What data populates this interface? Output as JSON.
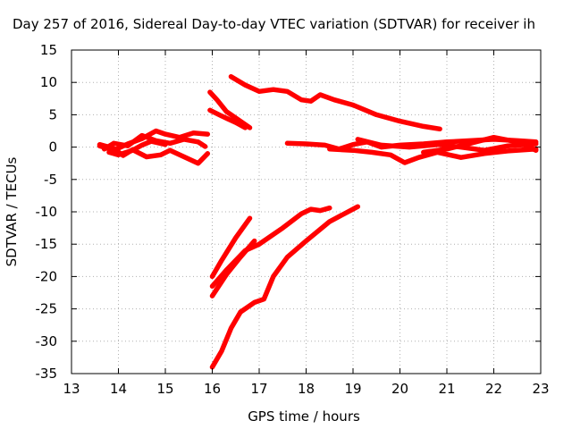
{
  "chart_data": {
    "type": "scatter",
    "title": "Day 257 of 2016, Sidereal Day-to-day VTEC variation (SDTVAR) for receiver ih",
    "xlabel": "GPS time / hours",
    "ylabel": "SDTVAR / TECUs",
    "xlim": [
      13,
      23
    ],
    "ylim": [
      -35,
      15
    ],
    "xticks": [
      13,
      14,
      15,
      16,
      17,
      18,
      19,
      20,
      21,
      22,
      23
    ],
    "yticks": [
      15,
      10,
      5,
      0,
      -5,
      -10,
      -15,
      -20,
      -25,
      -30,
      -35
    ],
    "grid": true,
    "legend": "none",
    "marker_color": "#ff0000",
    "series": [
      {
        "x": [
          13.6,
          13.9,
          14.2,
          14.5,
          14.8,
          15.0,
          15.3,
          15.6,
          15.9
        ],
        "y": [
          0.2,
          -0.5,
          0.5,
          1.3,
          2.5,
          2.0,
          1.5,
          2.2,
          2.0
        ]
      },
      {
        "x": [
          13.6,
          13.9,
          14.1,
          14.3,
          14.6,
          14.9,
          15.1,
          15.4,
          15.7,
          15.9
        ],
        "y": [
          0.4,
          -0.2,
          -1.3,
          -0.4,
          -1.5,
          -1.2,
          -0.5,
          -1.5,
          -2.5,
          -1.0
        ]
      },
      {
        "x": [
          13.7,
          13.9,
          14.2,
          14.5,
          14.8,
          15.1,
          15.4,
          15.7,
          15.85
        ],
        "y": [
          -0.3,
          0.6,
          0.2,
          1.8,
          1.0,
          0.6,
          1.2,
          0.8,
          0.1
        ]
      },
      {
        "x": [
          13.8,
          14.0,
          14.3,
          14.5,
          14.7,
          15.0
        ],
        "y": [
          -0.8,
          -1.2,
          -0.5,
          0.3,
          0.9,
          0.4
        ]
      },
      {
        "x": [
          15.95,
          16.1,
          16.3,
          16.5,
          16.8
        ],
        "y": [
          8.5,
          7.3,
          5.5,
          4.5,
          3.0
        ]
      },
      {
        "x": [
          15.95,
          16.2,
          16.5,
          16.7
        ],
        "y": [
          5.7,
          4.8,
          3.8,
          3.0
        ]
      },
      {
        "x": [
          16.4,
          16.7,
          17.0,
          17.3,
          17.6,
          17.9,
          18.1,
          18.3,
          18.6,
          19.0,
          19.5,
          20.0,
          20.5,
          20.85
        ],
        "y": [
          10.9,
          9.6,
          8.6,
          8.9,
          8.6,
          7.3,
          7.1,
          8.1,
          7.3,
          6.5,
          5.0,
          4.0,
          3.2,
          2.8
        ]
      },
      {
        "x": [
          17.6,
          18.0,
          18.4,
          18.7,
          19.0,
          19.3,
          19.6,
          20.0,
          20.5,
          21.0,
          21.5,
          22.0,
          22.5,
          22.9
        ],
        "y": [
          0.6,
          0.5,
          0.3,
          -0.3,
          0.4,
          0.8,
          0.0,
          0.3,
          0.5,
          0.8,
          1.0,
          1.2,
          1.0,
          0.8
        ]
      },
      {
        "x": [
          18.5,
          19.0,
          19.4,
          19.8,
          20.1,
          20.4,
          20.8,
          21.3,
          21.8,
          22.3,
          22.9
        ],
        "y": [
          -0.3,
          -0.5,
          -0.8,
          -1.2,
          -2.4,
          -1.6,
          -0.8,
          -1.6,
          -1.0,
          -0.6,
          -0.3
        ]
      },
      {
        "x": [
          19.1,
          19.6,
          20.2,
          20.8,
          21.3,
          21.8,
          22.3,
          22.9
        ],
        "y": [
          1.2,
          0.3,
          0.0,
          0.4,
          0.0,
          -0.5,
          0.2,
          0.5
        ]
      },
      {
        "x": [
          20.5,
          21.0,
          21.5,
          22.0,
          22.5,
          22.9
        ],
        "y": [
          -0.8,
          -0.3,
          0.6,
          1.5,
          0.8,
          -0.5
        ]
      },
      {
        "x": [
          16.0,
          16.2,
          16.5,
          16.8
        ],
        "y": [
          -20.0,
          -17.5,
          -14.0,
          -11.0
        ]
      },
      {
        "x": [
          16.0,
          16.3,
          16.7,
          17.0,
          17.5,
          17.9,
          18.1,
          18.3,
          18.5
        ],
        "y": [
          -21.5,
          -19.0,
          -16.0,
          -15.0,
          -12.5,
          -10.3,
          -9.6,
          -9.8,
          -9.4
        ]
      },
      {
        "x": [
          16.0,
          16.3,
          16.6,
          16.9
        ],
        "y": [
          -23.0,
          -19.7,
          -17.0,
          -14.5
        ]
      },
      {
        "x": [
          16.0,
          16.2,
          16.4,
          16.6,
          16.9,
          17.1,
          17.3,
          17.6,
          18.0,
          18.5,
          19.1
        ],
        "y": [
          -34.0,
          -31.5,
          -28.0,
          -25.5,
          -24.0,
          -23.5,
          -20.0,
          -17.0,
          -14.5,
          -11.5,
          -9.2
        ]
      }
    ]
  }
}
